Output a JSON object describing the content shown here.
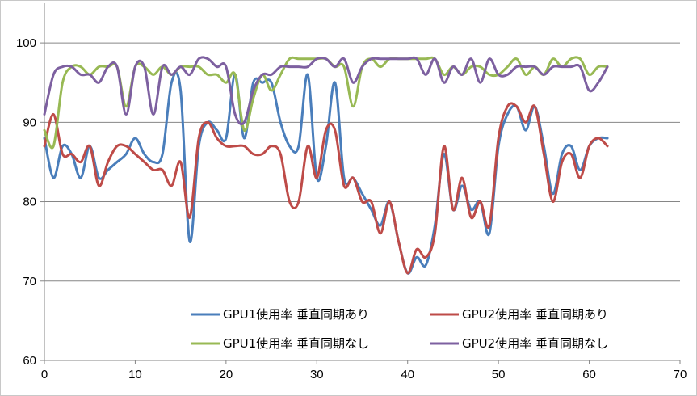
{
  "chart_data": {
    "type": "line",
    "title": "",
    "xlabel": "",
    "ylabel": "",
    "xlim": [
      0,
      70
    ],
    "ylim": [
      60,
      105
    ],
    "xticks": [
      0,
      10,
      20,
      30,
      40,
      50,
      60,
      70
    ],
    "yticks": [
      60,
      70,
      80,
      90,
      100
    ],
    "grid": "horizontal",
    "legend": "bottom-right",
    "x": [
      0,
      1,
      2,
      3,
      4,
      5,
      6,
      7,
      8,
      9,
      10,
      11,
      12,
      13,
      14,
      15,
      16,
      17,
      18,
      19,
      20,
      21,
      22,
      23,
      24,
      25,
      26,
      27,
      28,
      29,
      30,
      31,
      32,
      33,
      34,
      35,
      36,
      37,
      38,
      39,
      40,
      41,
      42,
      43,
      44,
      45,
      46,
      47,
      48,
      49,
      50,
      51,
      52,
      53,
      54,
      55,
      56,
      57,
      58,
      59,
      60,
      61,
      62
    ],
    "series": [
      {
        "name": "GPU1使用率 垂直同期あり",
        "color": "#4a7ebb",
        "values": [
          88,
          83,
          87,
          86,
          83,
          87,
          83,
          84,
          85,
          86,
          88,
          86,
          85,
          86,
          95,
          94,
          75,
          87,
          90,
          89,
          88,
          96,
          88,
          95,
          95,
          95,
          90,
          87,
          87,
          96,
          83,
          87,
          95,
          83,
          83,
          81,
          79,
          77,
          80,
          75,
          71,
          73,
          72,
          77,
          86,
          79,
          82,
          79,
          80,
          76,
          87,
          91,
          92,
          89,
          92,
          87,
          81,
          86,
          87,
          84,
          87,
          88,
          88
        ]
      },
      {
        "name": "GPU2使用率 垂直同期あり",
        "color": "#be4b48",
        "values": [
          87,
          91,
          86,
          86,
          85,
          87,
          82,
          85,
          87,
          87,
          86,
          85,
          84,
          84,
          82,
          85,
          78,
          88,
          90,
          88,
          87,
          87,
          87,
          86,
          86,
          87,
          86,
          80,
          80,
          87,
          83,
          89,
          89,
          82,
          83,
          80,
          80,
          76,
          80,
          75,
          71,
          74,
          73,
          76,
          87,
          79,
          83,
          78,
          80,
          77,
          88,
          92,
          92,
          90,
          92,
          86,
          80,
          85,
          86,
          83,
          87,
          88,
          87
        ]
      },
      {
        "name": "GPU1使用率 垂直同期なし",
        "color": "#98b954",
        "values": [
          89,
          87,
          95,
          97,
          97,
          96,
          97,
          97,
          97,
          92,
          97,
          97,
          96,
          97,
          96,
          97,
          97,
          97,
          96,
          96,
          95,
          96,
          89,
          93,
          96,
          94,
          96,
          98,
          98,
          98,
          98,
          98,
          97,
          97,
          92,
          97,
          98,
          97,
          98,
          98,
          98,
          98,
          98,
          98,
          96,
          97,
          96,
          97,
          97,
          96,
          96,
          97,
          98,
          96,
          97,
          96,
          98,
          97,
          98,
          98,
          96,
          97,
          97
        ]
      },
      {
        "name": "GPU2使用率 垂直同期なし",
        "color": "#7d60a0",
        "values": [
          91,
          96,
          97,
          97,
          96,
          96,
          95,
          97,
          97,
          91,
          97,
          97,
          91,
          97,
          96,
          97,
          96,
          98,
          98,
          97,
          97,
          91,
          90,
          94,
          96,
          96,
          97,
          97,
          97,
          97,
          98,
          98,
          97,
          98,
          95,
          97,
          98,
          98,
          98,
          98,
          98,
          98,
          96,
          98,
          95,
          97,
          96,
          98,
          95,
          98,
          96,
          96,
          97,
          97,
          97,
          96,
          97,
          97,
          97,
          97,
          94,
          95,
          97
        ]
      }
    ]
  }
}
